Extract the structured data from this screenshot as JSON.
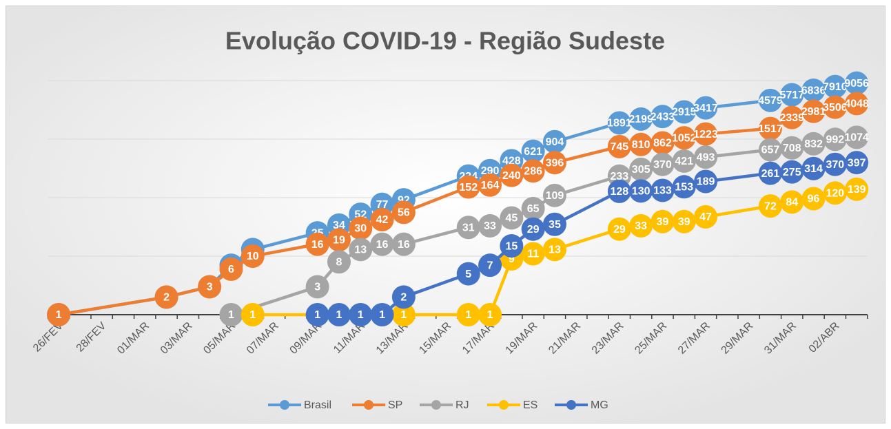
{
  "chart_data": {
    "type": "line",
    "title": "Evolução COVID-19 - Região Sudeste",
    "categories": [
      "26/FEV",
      null,
      "28/FEV",
      null,
      "01/MAR",
      null,
      "03/MAR",
      null,
      "05/MAR",
      null,
      "07/MAR",
      null,
      "09/MAR",
      null,
      "11/MAR",
      null,
      "13/MAR",
      null,
      "15/MAR",
      null,
      "17/MAR",
      null,
      "19/MAR",
      null,
      "21/MAR",
      null,
      "23/MAR",
      null,
      "25/MAR",
      null,
      "27/MAR",
      null,
      "29/MAR",
      null,
      "31/MAR",
      null,
      "02/ABR",
      null
    ],
    "series": [
      {
        "name": "Brasil",
        "color": "#5b9bd5",
        "values": [
          1,
          null,
          null,
          null,
          null,
          2,
          null,
          3,
          7,
          13,
          null,
          null,
          25,
          34,
          52,
          77,
          92,
          null,
          null,
          234,
          290,
          428,
          621,
          904,
          null,
          null,
          1891,
          2199,
          2433,
          2915,
          3417,
          null,
          null,
          4579,
          5717,
          6836,
          7910,
          9056
        ]
      },
      {
        "name": "SP",
        "color": "#ed7d31",
        "values": [
          1,
          null,
          null,
          null,
          null,
          2,
          null,
          3,
          6,
          10,
          null,
          null,
          16,
          19,
          30,
          42,
          56,
          null,
          null,
          152,
          164,
          240,
          286,
          396,
          null,
          null,
          745,
          810,
          862,
          1052,
          1223,
          null,
          null,
          1517,
          2339,
          2981,
          3506,
          4048
        ]
      },
      {
        "name": "RJ",
        "color": "#a5a5a5",
        "values": [
          null,
          null,
          null,
          null,
          null,
          null,
          null,
          null,
          1,
          null,
          null,
          null,
          3,
          8,
          13,
          16,
          16,
          null,
          null,
          31,
          33,
          45,
          65,
          109,
          null,
          null,
          233,
          305,
          370,
          421,
          493,
          null,
          null,
          657,
          708,
          832,
          992,
          1074
        ]
      },
      {
        "name": "ES",
        "color": "#ffc000",
        "values": [
          null,
          null,
          null,
          null,
          null,
          null,
          null,
          null,
          null,
          1,
          null,
          null,
          null,
          null,
          null,
          null,
          1,
          null,
          null,
          1,
          1,
          9,
          11,
          13,
          null,
          null,
          29,
          33,
          39,
          39,
          47,
          null,
          null,
          72,
          84,
          96,
          120,
          139
        ]
      },
      {
        "name": "MG",
        "color": "#4472c4",
        "values": [
          null,
          null,
          null,
          null,
          null,
          null,
          null,
          null,
          null,
          null,
          null,
          null,
          1,
          1,
          1,
          1,
          2,
          null,
          null,
          5,
          7,
          15,
          29,
          35,
          null,
          null,
          128,
          130,
          133,
          153,
          189,
          null,
          null,
          261,
          275,
          314,
          370,
          397
        ]
      }
    ],
    "ylim": [
      1,
      10000
    ],
    "yticks": [
      1,
      10,
      100,
      1000,
      10000
    ],
    "log_y": true,
    "grid": true,
    "legend": "bottom"
  }
}
